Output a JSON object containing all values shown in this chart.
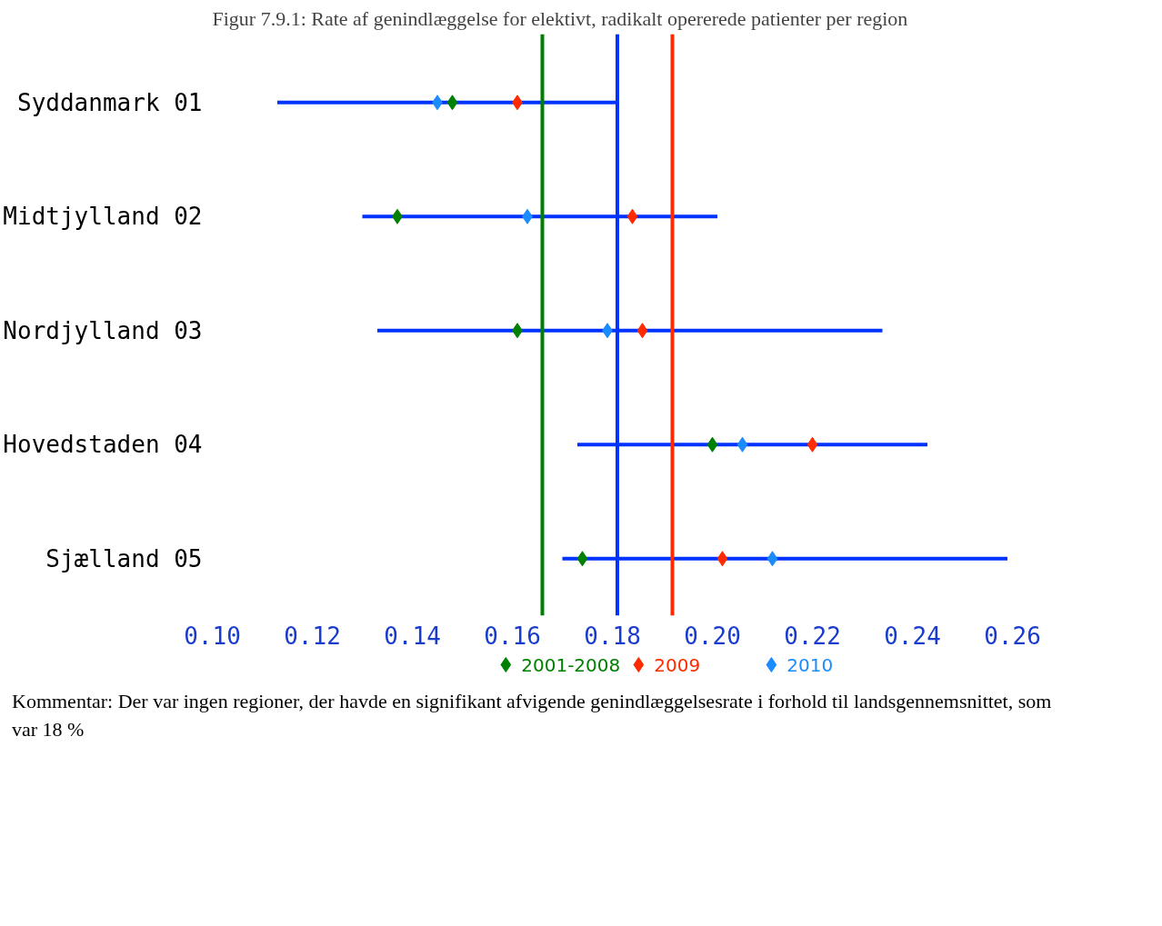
{
  "chart_data": {
    "type": "scatter",
    "orientation": "horizontal",
    "title": "Figur 7.9.1: Rate af genindlæggelse for elektivt, radikalt opererede patienter per region",
    "categories": [
      "Syddanmark 01",
      "Midtjylland 02",
      "Nordjylland 03",
      "Hovedstaden 04",
      "Sjælland 05"
    ],
    "series": [
      {
        "name": "2001-2008",
        "color": "#008000",
        "values": [
          0.148,
          0.137,
          0.161,
          0.2,
          0.174
        ]
      },
      {
        "name": "2009",
        "color": "#ff2a00",
        "values": [
          0.161,
          0.184,
          0.186,
          0.22,
          0.202
        ]
      },
      {
        "name": "2010",
        "color": "#1a8cff",
        "values": [
          0.145,
          0.163,
          0.179,
          0.206,
          0.212
        ],
        "errors": [
          [
            0.113,
            0.181
          ],
          [
            0.13,
            0.201
          ],
          [
            0.133,
            0.234
          ],
          [
            0.173,
            0.243
          ],
          [
            0.17,
            0.259
          ]
        ]
      }
    ],
    "ref_lines": [
      {
        "axis": "x",
        "value": 0.166,
        "color": "#008000"
      },
      {
        "axis": "x",
        "value": 0.181,
        "color": "#0033ff"
      },
      {
        "axis": "x",
        "value": 0.192,
        "color": "#ff2a00"
      }
    ],
    "xlim": [
      0.1,
      0.26
    ],
    "xticks": [
      {
        "value": 0.1,
        "label": "0.10"
      },
      {
        "value": 0.12,
        "label": "0.12"
      },
      {
        "value": 0.14,
        "label": "0.14"
      },
      {
        "value": 0.16,
        "label": "0.16"
      },
      {
        "value": 0.18,
        "label": "0.18"
      },
      {
        "value": 0.2,
        "label": "0.20"
      },
      {
        "value": 0.22,
        "label": "0.22"
      },
      {
        "value": 0.24,
        "label": "0.24"
      },
      {
        "value": 0.26,
        "label": "0.26"
      }
    ],
    "grid": false,
    "marker": "diamond",
    "legend": "bottom",
    "annotations": [
      "Kommentar: Der var ingen regioner, der havde en signifikant afvigende genindlæggelsesrate i forhold til landsgennemsnittet, som var 18 %"
    ]
  }
}
